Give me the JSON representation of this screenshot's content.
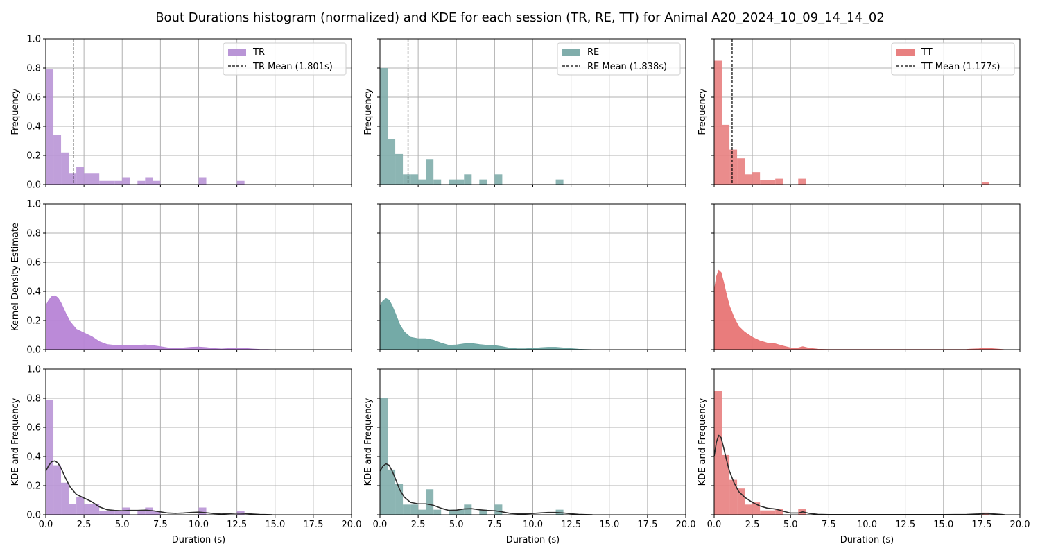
{
  "chart_data": {
    "type": "bar",
    "title": "Bout Durations histogram (normalized) and KDE for each session (TR, RE, TT) for Animal A20_2024_10_09_14_14_02",
    "xlabel": "Duration (s)",
    "row_ylabels": [
      "Frequency",
      "Kernel Density Estimate",
      "KDE and Frequency"
    ],
    "xlim": [
      0,
      20
    ],
    "ylim": [
      0,
      1.0
    ],
    "xticks": [
      "0.0",
      "2.5",
      "5.0",
      "7.5",
      "10.0",
      "12.5",
      "15.0",
      "17.5",
      "20.0"
    ],
    "yticks": [
      "0.0",
      "0.2",
      "0.4",
      "0.6",
      "0.8",
      "1.0"
    ],
    "grid": true,
    "legend_position": "top-right",
    "bin_width": 0.5,
    "sessions": [
      {
        "name": "TR",
        "color": "#b995d6",
        "kde_color": "#b784d6",
        "mean": 1.801,
        "mean_label": "TR Mean (1.801s)",
        "hist": [
          {
            "x0": 0.0,
            "x1": 0.5,
            "y": 0.79
          },
          {
            "x0": 0.5,
            "x1": 1.0,
            "y": 0.34
          },
          {
            "x0": 1.0,
            "x1": 1.5,
            "y": 0.22
          },
          {
            "x0": 1.5,
            "x1": 2.0,
            "y": 0.075
          },
          {
            "x0": 2.0,
            "x1": 2.5,
            "y": 0.12
          },
          {
            "x0": 2.5,
            "x1": 3.0,
            "y": 0.075
          },
          {
            "x0": 3.0,
            "x1": 3.5,
            "y": 0.075
          },
          {
            "x0": 3.5,
            "x1": 4.0,
            "y": 0.025
          },
          {
            "x0": 4.0,
            "x1": 4.5,
            "y": 0.025
          },
          {
            "x0": 4.5,
            "x1": 5.0,
            "y": 0.025
          },
          {
            "x0": 5.0,
            "x1": 5.5,
            "y": 0.05
          },
          {
            "x0": 6.0,
            "x1": 6.5,
            "y": 0.025
          },
          {
            "x0": 6.5,
            "x1": 7.0,
            "y": 0.05
          },
          {
            "x0": 7.0,
            "x1": 7.5,
            "y": 0.025
          },
          {
            "x0": 10.0,
            "x1": 10.5,
            "y": 0.05
          },
          {
            "x0": 12.5,
            "x1": 13.0,
            "y": 0.025
          }
        ],
        "kde_x": [
          0.0,
          0.2,
          0.4,
          0.6,
          0.8,
          1.0,
          1.3,
          1.6,
          2.0,
          2.5,
          3.0,
          3.5,
          4.0,
          4.5,
          5.0,
          5.5,
          6.0,
          6.5,
          7.0,
          7.5,
          8.0,
          8.5,
          9.0,
          9.5,
          10.0,
          10.5,
          11.0,
          11.5,
          12.0,
          12.5,
          13.0,
          13.5,
          14.0,
          14.5,
          14.8
        ],
        "kde_y": [
          0.3,
          0.34,
          0.365,
          0.37,
          0.355,
          0.32,
          0.25,
          0.19,
          0.14,
          0.115,
          0.09,
          0.055,
          0.035,
          0.03,
          0.028,
          0.03,
          0.03,
          0.032,
          0.028,
          0.02,
          0.012,
          0.01,
          0.012,
          0.016,
          0.018,
          0.014,
          0.008,
          0.005,
          0.008,
          0.011,
          0.009,
          0.005,
          0.002,
          0.001,
          0.0
        ]
      },
      {
        "name": "RE",
        "color": "#80adab",
        "kde_color": "#6da5a2",
        "mean": 1.838,
        "mean_label": "RE Mean (1.838s)",
        "hist": [
          {
            "x0": 0.0,
            "x1": 0.5,
            "y": 0.8
          },
          {
            "x0": 0.5,
            "x1": 1.0,
            "y": 0.31
          },
          {
            "x0": 1.0,
            "x1": 1.5,
            "y": 0.21
          },
          {
            "x0": 1.5,
            "x1": 2.0,
            "y": 0.07
          },
          {
            "x0": 2.0,
            "x1": 2.5,
            "y": 0.07
          },
          {
            "x0": 2.5,
            "x1": 3.0,
            "y": 0.035
          },
          {
            "x0": 3.0,
            "x1": 3.5,
            "y": 0.175
          },
          {
            "x0": 3.5,
            "x1": 4.0,
            "y": 0.035
          },
          {
            "x0": 4.5,
            "x1": 5.0,
            "y": 0.035
          },
          {
            "x0": 5.0,
            "x1": 5.5,
            "y": 0.035
          },
          {
            "x0": 5.5,
            "x1": 6.0,
            "y": 0.07
          },
          {
            "x0": 6.5,
            "x1": 7.0,
            "y": 0.035
          },
          {
            "x0": 7.5,
            "x1": 8.0,
            "y": 0.07
          },
          {
            "x0": 11.5,
            "x1": 12.0,
            "y": 0.035
          }
        ],
        "kde_x": [
          0.0,
          0.2,
          0.4,
          0.6,
          0.8,
          1.0,
          1.3,
          1.6,
          2.0,
          2.5,
          3.0,
          3.5,
          4.0,
          4.5,
          5.0,
          5.5,
          6.0,
          6.5,
          7.0,
          7.5,
          8.0,
          8.5,
          9.0,
          9.5,
          10.0,
          10.5,
          11.0,
          11.5,
          12.0,
          12.5,
          13.0,
          13.5,
          13.9
        ],
        "kde_y": [
          0.3,
          0.335,
          0.35,
          0.34,
          0.3,
          0.25,
          0.17,
          0.12,
          0.085,
          0.075,
          0.075,
          0.065,
          0.045,
          0.03,
          0.032,
          0.04,
          0.042,
          0.035,
          0.03,
          0.028,
          0.02,
          0.01,
          0.006,
          0.006,
          0.009,
          0.013,
          0.016,
          0.016,
          0.012,
          0.007,
          0.003,
          0.001,
          0.0
        ]
      },
      {
        "name": "TT",
        "color": "#e88080",
        "kde_color": "#e87575",
        "mean": 1.177,
        "mean_label": "TT Mean (1.177s)",
        "hist": [
          {
            "x0": 0.0,
            "x1": 0.5,
            "y": 0.85
          },
          {
            "x0": 0.5,
            "x1": 1.0,
            "y": 0.41
          },
          {
            "x0": 1.0,
            "x1": 1.5,
            "y": 0.24
          },
          {
            "x0": 1.5,
            "x1": 2.0,
            "y": 0.18
          },
          {
            "x0": 2.0,
            "x1": 2.5,
            "y": 0.07
          },
          {
            "x0": 2.5,
            "x1": 3.0,
            "y": 0.085
          },
          {
            "x0": 3.0,
            "x1": 3.5,
            "y": 0.03
          },
          {
            "x0": 3.5,
            "x1": 4.0,
            "y": 0.03
          },
          {
            "x0": 4.0,
            "x1": 4.5,
            "y": 0.04
          },
          {
            "x0": 5.5,
            "x1": 6.0,
            "y": 0.04
          },
          {
            "x0": 17.5,
            "x1": 18.0,
            "y": 0.015
          }
        ],
        "kde_x": [
          0.0,
          0.15,
          0.3,
          0.45,
          0.6,
          0.8,
          1.0,
          1.3,
          1.6,
          2.0,
          2.5,
          3.0,
          3.5,
          4.0,
          4.5,
          5.0,
          5.5,
          5.8,
          6.2,
          6.8,
          7.5,
          9.0,
          11.0,
          13.0,
          15.0,
          16.5,
          17.3,
          17.8,
          18.3,
          18.8,
          19.0
        ],
        "kde_y": [
          0.4,
          0.5,
          0.545,
          0.53,
          0.47,
          0.38,
          0.3,
          0.22,
          0.16,
          0.12,
          0.085,
          0.06,
          0.045,
          0.04,
          0.025,
          0.012,
          0.012,
          0.02,
          0.01,
          0.003,
          0.001,
          0.001,
          0.001,
          0.001,
          0.001,
          0.002,
          0.006,
          0.01,
          0.006,
          0.002,
          0.0
        ]
      }
    ]
  }
}
